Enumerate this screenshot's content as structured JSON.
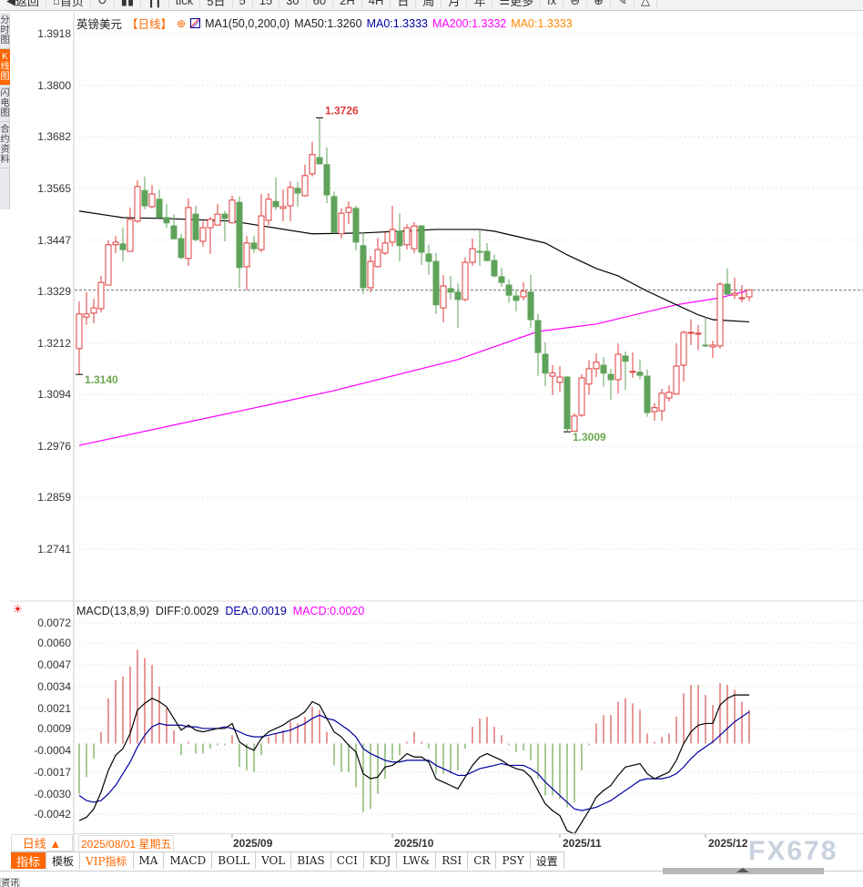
{
  "toolbar": {
    "items": [
      {
        "label": "返回",
        "icon": "back-arrow-icon"
      },
      {
        "label": "首页",
        "icon": "home-icon"
      },
      {
        "label": "",
        "icon": "refresh-icon"
      },
      {
        "label": "",
        "icon": "bar-chart-icon"
      },
      {
        "label": "",
        "icon": "candlestick-icon"
      },
      {
        "label": "tick"
      },
      {
        "label": "5日"
      },
      {
        "label": "5"
      },
      {
        "label": "15"
      },
      {
        "label": "30"
      },
      {
        "label": "60"
      },
      {
        "label": "2H"
      },
      {
        "label": "4H"
      },
      {
        "label": "日"
      },
      {
        "label": "周"
      },
      {
        "label": "月"
      },
      {
        "label": "年"
      },
      {
        "label": "更多",
        "icon": "menu-icon"
      },
      {
        "label": "",
        "icon": "fx-icon"
      },
      {
        "label": "",
        "icon": "zoom-out-icon"
      },
      {
        "label": "",
        "icon": "zoom-in-icon"
      },
      {
        "label": "",
        "icon": "pen-icon"
      },
      {
        "label": "",
        "icon": "triangle-icon"
      }
    ]
  },
  "sidebar": {
    "tabs": [
      {
        "label": "分时图"
      },
      {
        "label": "K线图",
        "active": true
      },
      {
        "label": "闪电图"
      },
      {
        "label": "合约资料"
      }
    ]
  },
  "legend": {
    "symbol": "英镑美元",
    "period": "【日线】",
    "ma_name": "MA1(50,0,200,0)",
    "ma50": "MA50:1.3260",
    "ma0a": "MA0:1.3333",
    "ma200": "MA200:1.3332",
    "ma0b": "MA0:1.3333"
  },
  "macd_legend": {
    "name": "MACD(13,8,9)",
    "diff": "DIFF:0.0029",
    "dea": "DEA:0.0019",
    "macd": "MACD:0.0020"
  },
  "colors": {
    "up": "#e03c3c",
    "down": "#5fa35a",
    "ma50": "#000000",
    "ma200": "#ff00ff",
    "diff": "#000000",
    "dea": "#0000a0",
    "accent": "#ff6600",
    "last_price_line": "#1e6fd9"
  },
  "chart_data": [
    {
      "type": "candlestick",
      "title": "英镑美元",
      "price_ticks": [
        "1.3918",
        "1.3800",
        "1.3682",
        "1.3565",
        "1.3447",
        "1.3329",
        "1.3212",
        "1.3094",
        "1.2976",
        "1.2859",
        "1.2741"
      ],
      "ylim": [
        1.2741,
        1.3918
      ],
      "grid": true,
      "last_price": 1.3333,
      "annotations": [
        {
          "label": "1.3726",
          "candle": 34,
          "kind": "high"
        },
        {
          "label": "1.3140",
          "candle": 1,
          "kind": "low"
        },
        {
          "label": "1.3009",
          "candle": 68,
          "kind": "low"
        }
      ],
      "ohlc": [
        [
          1.3199,
          1.3307,
          1.314,
          1.3278
        ],
        [
          1.3271,
          1.3328,
          1.3253,
          1.3278
        ],
        [
          1.328,
          1.3313,
          1.3257,
          1.3292
        ],
        [
          1.329,
          1.3365,
          1.3282,
          1.335
        ],
        [
          1.3344,
          1.3446,
          1.3344,
          1.3436
        ],
        [
          1.3436,
          1.3456,
          1.3417,
          1.3442
        ],
        [
          1.3438,
          1.3475,
          1.3398,
          1.3425
        ],
        [
          1.3421,
          1.3521,
          1.3421,
          1.3494
        ],
        [
          1.349,
          1.3583,
          1.3486,
          1.3569
        ],
        [
          1.356,
          1.3592,
          1.3517,
          1.3525
        ],
        [
          1.3523,
          1.3573,
          1.3519,
          1.3552
        ],
        [
          1.354,
          1.3562,
          1.3498,
          1.3498
        ],
        [
          1.3498,
          1.3529,
          1.3475,
          1.3486
        ],
        [
          1.3479,
          1.3506,
          1.3448,
          1.345
        ],
        [
          1.345,
          1.3461,
          1.3402,
          1.3407
        ],
        [
          1.3405,
          1.3542,
          1.3388,
          1.3521
        ],
        [
          1.3506,
          1.3525,
          1.3444,
          1.3448
        ],
        [
          1.3444,
          1.349,
          1.3432,
          1.3475
        ],
        [
          1.3475,
          1.35,
          1.3415,
          1.3494
        ],
        [
          1.3481,
          1.3529,
          1.3481,
          1.3506
        ],
        [
          1.3506,
          1.3513,
          1.3444,
          1.3496
        ],
        [
          1.3486,
          1.3548,
          1.3486,
          1.3538
        ],
        [
          1.3533,
          1.3546,
          1.3338,
          1.3384
        ],
        [
          1.3386,
          1.3456,
          1.3332,
          1.344
        ],
        [
          1.344,
          1.3456,
          1.3417,
          1.3427
        ],
        [
          1.3425,
          1.3552,
          1.3419,
          1.3502
        ],
        [
          1.3492,
          1.3554,
          1.3481,
          1.354
        ],
        [
          1.3535,
          1.359,
          1.3515,
          1.3523
        ],
        [
          1.3519,
          1.3562,
          1.349,
          1.3523
        ],
        [
          1.3525,
          1.3581,
          1.349,
          1.3567
        ],
        [
          1.3565,
          1.3579,
          1.3523,
          1.3554
        ],
        [
          1.3548,
          1.3619,
          1.3546,
          1.3594
        ],
        [
          1.3598,
          1.3671,
          1.3592,
          1.3642
        ],
        [
          1.3635,
          1.3726,
          1.3619,
          1.3621
        ],
        [
          1.3619,
          1.3658,
          1.3531,
          1.355
        ],
        [
          1.3546,
          1.3558,
          1.3461,
          1.3465
        ],
        [
          1.3461,
          1.3519,
          1.345,
          1.3508
        ],
        [
          1.351,
          1.3535,
          1.3483,
          1.3521
        ],
        [
          1.3519,
          1.3525,
          1.3423,
          1.3442
        ],
        [
          1.3434,
          1.3465,
          1.3323,
          1.3338
        ],
        [
          1.3338,
          1.3411,
          1.3328,
          1.3398
        ],
        [
          1.3386,
          1.3452,
          1.3384,
          1.3425
        ],
        [
          1.3417,
          1.3465,
          1.3413,
          1.344
        ],
        [
          1.3442,
          1.3525,
          1.3432,
          1.3471
        ],
        [
          1.3467,
          1.3508,
          1.3398,
          1.3434
        ],
        [
          1.3436,
          1.3483,
          1.3425,
          1.3475
        ],
        [
          1.3427,
          1.3488,
          1.3417,
          1.3479
        ],
        [
          1.3479,
          1.3481,
          1.339,
          1.3419
        ],
        [
          1.3415,
          1.3436,
          1.3367,
          1.3398
        ],
        [
          1.3398,
          1.3417,
          1.3278,
          1.3299
        ],
        [
          1.3292,
          1.3367,
          1.3259,
          1.3342
        ],
        [
          1.3336,
          1.3365,
          1.3311,
          1.3328
        ],
        [
          1.3328,
          1.3348,
          1.3246,
          1.3311
        ],
        [
          1.3311,
          1.3407,
          1.3307,
          1.3396
        ],
        [
          1.3396,
          1.345,
          1.3388,
          1.3427
        ],
        [
          1.3421,
          1.3471,
          1.3388,
          1.3419
        ],
        [
          1.3421,
          1.344,
          1.3398,
          1.34
        ],
        [
          1.34,
          1.3413,
          1.3361,
          1.3365
        ],
        [
          1.3363,
          1.3384,
          1.334,
          1.335
        ],
        [
          1.3344,
          1.3357,
          1.3303,
          1.3321
        ],
        [
          1.3319,
          1.3334,
          1.3284,
          1.3309
        ],
        [
          1.3317,
          1.335,
          1.3309,
          1.333
        ],
        [
          1.3328,
          1.3367,
          1.3246,
          1.3265
        ],
        [
          1.3263,
          1.3278,
          1.3136,
          1.319
        ],
        [
          1.3186,
          1.3213,
          1.3113,
          1.3143
        ],
        [
          1.3136,
          1.3161,
          1.3093,
          1.3143
        ],
        [
          1.3122,
          1.3159,
          1.3101,
          1.3134
        ],
        [
          1.3134,
          1.3136,
          1.3009,
          1.3016
        ],
        [
          1.301,
          1.3051,
          1.3009,
          1.3045
        ],
        [
          1.3047,
          1.314,
          1.3043,
          1.3132
        ],
        [
          1.3118,
          1.3172,
          1.3093,
          1.3153
        ],
        [
          1.3153,
          1.3188,
          1.3134,
          1.3168
        ],
        [
          1.3161,
          1.318,
          1.3113,
          1.3143
        ],
        [
          1.314,
          1.3153,
          1.3082,
          1.3128
        ],
        [
          1.3128,
          1.3211,
          1.3097,
          1.3186
        ],
        [
          1.3182,
          1.3192,
          1.3105,
          1.317
        ],
        [
          1.3145,
          1.319,
          1.3132,
          1.3147
        ],
        [
          1.3145,
          1.3174,
          1.3128,
          1.3138
        ],
        [
          1.3136,
          1.3151,
          1.3043,
          1.3053
        ],
        [
          1.3055,
          1.3074,
          1.3034,
          1.3064
        ],
        [
          1.3057,
          1.3107,
          1.3034,
          1.3097
        ],
        [
          1.3086,
          1.3115,
          1.3078,
          1.3099
        ],
        [
          1.3095,
          1.3211,
          1.3095,
          1.3159
        ],
        [
          1.3161,
          1.324,
          1.3124,
          1.3236
        ],
        [
          1.3236,
          1.3265,
          1.3207,
          1.3236
        ],
        [
          1.3234,
          1.3253,
          1.3195,
          1.3234
        ],
        [
          1.3207,
          1.3271,
          1.3203,
          1.3206
        ],
        [
          1.3203,
          1.3217,
          1.3178,
          1.3207
        ],
        [
          1.3205,
          1.335,
          1.3199,
          1.3346
        ],
        [
          1.3346,
          1.3382,
          1.3321,
          1.3323
        ],
        [
          1.3321,
          1.3361,
          1.3313,
          1.3325
        ],
        [
          1.3313,
          1.3344,
          1.3305,
          1.3315
        ],
        [
          1.3317,
          1.3334,
          1.3307,
          1.3333
        ]
      ],
      "ma50": [
        [
          1,
          1.3513
        ],
        [
          7,
          1.3498
        ],
        [
          13,
          1.3496
        ],
        [
          22,
          1.349
        ],
        [
          33,
          1.3461
        ],
        [
          40,
          1.3463
        ],
        [
          50,
          1.3471
        ],
        [
          56,
          1.3471
        ],
        [
          58,
          1.3467
        ],
        [
          65,
          1.344
        ],
        [
          68,
          1.3413
        ],
        [
          72,
          1.3382
        ],
        [
          75,
          1.3365
        ],
        [
          79,
          1.333
        ],
        [
          83,
          1.3299
        ],
        [
          86,
          1.3276
        ],
        [
          88,
          1.3265
        ],
        [
          93,
          1.326
        ]
      ],
      "ma200": [
        [
          1,
          1.2978
        ],
        [
          15,
          1.3028
        ],
        [
          28,
          1.3074
        ],
        [
          36,
          1.3103
        ],
        [
          53,
          1.3174
        ],
        [
          64,
          1.3238
        ],
        [
          72,
          1.3255
        ],
        [
          83,
          1.3299
        ],
        [
          89,
          1.3315
        ],
        [
          93,
          1.3332
        ]
      ]
    },
    {
      "type": "macd",
      "ticks": [
        "0.0072",
        "0.0060",
        "0.0047",
        "0.0034",
        "0.0021",
        "0.0009",
        "-0.0004",
        "-0.0017",
        "-0.0030",
        "-0.0042"
      ],
      "ylim": [
        -0.0042,
        0.0072
      ],
      "macd": [
        -0.003,
        -0.002,
        -0.0009,
        0.0007,
        0.0027,
        0.0038,
        0.004,
        0.0046,
        0.0056,
        0.0051,
        0.0047,
        0.0034,
        0.0021,
        0.0008,
        -0.0007,
        0.0001,
        -0.0006,
        -0.0006,
        -0.0003,
        -0.0001,
        -0.0001,
        0.0005,
        -0.0014,
        -0.0016,
        -0.0017,
        -0.0007,
        0.0004,
        0.0006,
        0.0008,
        0.0013,
        0.0012,
        0.0016,
        0.0022,
        0.002,
        0.0007,
        -0.0013,
        -0.0017,
        -0.0017,
        -0.0026,
        -0.0041,
        -0.0039,
        -0.003,
        -0.0021,
        -0.001,
        -0.0007,
        0.0001,
        0.0007,
        0.0001,
        -0.0003,
        -0.0018,
        -0.0018,
        -0.0018,
        -0.0016,
        -0.0003,
        0.001,
        0.0015,
        0.0016,
        0.001,
        0.0005,
        -0.0001,
        -0.0005,
        -0.0004,
        -0.001,
        -0.0021,
        -0.0031,
        -0.0031,
        -0.0033,
        -0.0038,
        -0.0035,
        -0.0016,
        -0.0001,
        0.0012,
        0.0017,
        0.0017,
        0.0025,
        0.0027,
        0.0024,
        0.002,
        0.0006,
        0.0001,
        0.0004,
        0.0006,
        0.0016,
        0.003,
        0.0035,
        0.0035,
        0.0029,
        0.0023,
        0.0036,
        0.0035,
        0.0032,
        0.0025,
        0.002
      ],
      "diff": [
        -0.0046,
        -0.0044,
        -0.0039,
        -0.0029,
        -0.0016,
        -0.0007,
        -0.0003,
        0.0006,
        0.002,
        0.0024,
        0.0027,
        0.0025,
        0.0022,
        0.0015,
        0.0008,
        0.0011,
        0.0008,
        0.0007,
        0.0008,
        0.0009,
        0.0009,
        0.0012,
        0.0001,
        -0.0002,
        -0.0004,
        0.0003,
        0.0007,
        0.0009,
        0.0011,
        0.0014,
        0.0016,
        0.0019,
        0.0025,
        0.0023,
        0.0015,
        0.0007,
        0.0004,
        -0.0001,
        -0.0005,
        -0.0018,
        -0.0021,
        -0.002,
        -0.0014,
        -0.0013,
        -0.001,
        -0.0006,
        -0.0008,
        -0.0008,
        -0.0011,
        -0.0021,
        -0.0023,
        -0.0025,
        -0.0027,
        -0.002,
        -0.0013,
        -0.0008,
        -0.0006,
        -0.0008,
        -0.001,
        -0.0013,
        -0.0015,
        -0.0016,
        -0.002,
        -0.0028,
        -0.0036,
        -0.004,
        -0.0043,
        -0.0052,
        -0.0054,
        -0.0047,
        -0.004,
        -0.0032,
        -0.0028,
        -0.0025,
        -0.0019,
        -0.0014,
        -0.0013,
        -0.0012,
        -0.0018,
        -0.0021,
        -0.0019,
        -0.0017,
        -0.001,
        0.0,
        0.0007,
        0.0011,
        0.0012,
        0.0012,
        0.0023,
        0.0027,
        0.0029,
        0.0029,
        0.0029
      ],
      "dea": [
        -0.0031,
        -0.0034,
        -0.0035,
        -0.0034,
        -0.003,
        -0.0025,
        -0.0018,
        -0.0011,
        -0.0002,
        0.0005,
        0.001,
        0.0012,
        0.0011,
        0.0011,
        0.0011,
        0.001,
        0.001,
        0.0009,
        0.0009,
        0.0009,
        0.001,
        0.0009,
        0.0007,
        0.0005,
        0.0004,
        0.0004,
        0.0005,
        0.0006,
        0.0007,
        0.0008,
        0.001,
        0.0012,
        0.0015,
        0.0017,
        0.0015,
        0.0014,
        0.0011,
        0.0008,
        0.0004,
        -0.0003,
        -0.0006,
        -0.0008,
        -0.001,
        -0.0011,
        -0.0011,
        -0.001,
        -0.001,
        -0.001,
        -0.001,
        -0.0013,
        -0.0015,
        -0.0017,
        -0.0019,
        -0.0019,
        -0.0017,
        -0.0015,
        -0.0014,
        -0.0013,
        -0.0012,
        -0.0013,
        -0.0013,
        -0.0013,
        -0.0015,
        -0.0018,
        -0.0023,
        -0.0027,
        -0.0031,
        -0.0035,
        -0.0039,
        -0.004,
        -0.0039,
        -0.0038,
        -0.0036,
        -0.0034,
        -0.0031,
        -0.0028,
        -0.0025,
        -0.0022,
        -0.0021,
        -0.0021,
        -0.0021,
        -0.002,
        -0.0018,
        -0.0014,
        -0.0009,
        -0.0005,
        -0.0002,
        0.0001,
        0.0005,
        0.0009,
        0.0013,
        0.0016,
        0.0019
      ]
    }
  ],
  "xaxis": {
    "period_button": "日线 ▲",
    "cursor_date": "2025/08/01 星期五",
    "labels": [
      "2025/09",
      "2025/10",
      "2025/11",
      "2025/12"
    ]
  },
  "tabs": [
    {
      "label": "指标",
      "active": true
    },
    {
      "label": "模板"
    },
    {
      "label": "VIP指标",
      "vip": true
    },
    {
      "label": "MA"
    },
    {
      "label": "MACD"
    },
    {
      "label": "BOLL"
    },
    {
      "label": "VOL"
    },
    {
      "label": "BIAS"
    },
    {
      "label": "CCI"
    },
    {
      "label": "KDJ"
    },
    {
      "label": "LW&"
    },
    {
      "label": "RSI"
    },
    {
      "label": "CR"
    },
    {
      "label": "PSY"
    },
    {
      "label": "设置"
    }
  ],
  "watermark": "FX678",
  "bottom_tab": "资讯"
}
